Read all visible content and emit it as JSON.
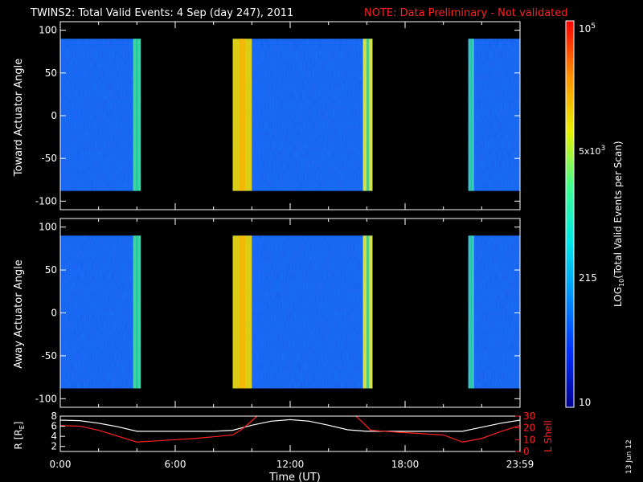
{
  "chart_data": [
    {
      "type": "heatmap",
      "title": "TWINS2: Total Valid Events:  4 Sep (day 247), 2011",
      "note": "NOTE: Data Preliminary - Not validated",
      "ylabel": "Toward Actuator Angle",
      "ylim": [
        -110,
        110
      ],
      "yticks": [
        "100",
        "50",
        "0",
        "-50",
        "-100"
      ],
      "ytick_values": [
        100,
        50,
        0,
        -50,
        -100
      ],
      "x_range_hours": [
        0,
        24
      ],
      "data_segments_hours": [
        [
          0,
          4.2
        ],
        [
          9.0,
          16.3
        ],
        [
          21.3,
          24
        ]
      ],
      "bright_bands_hours": [
        [
          3.8,
          4.2
        ],
        [
          9.0,
          10.0
        ],
        [
          15.8,
          16.3
        ],
        [
          21.3,
          21.6
        ]
      ]
    },
    {
      "type": "heatmap",
      "ylabel": "Away Actuator Angle",
      "ylim": [
        -110,
        110
      ],
      "yticks": [
        "100",
        "50",
        "0",
        "-50",
        "-100"
      ],
      "ytick_values": [
        100,
        50,
        0,
        -50,
        -100
      ],
      "x_range_hours": [
        0,
        24
      ],
      "data_segments_hours": [
        [
          0,
          4.2
        ],
        [
          9.0,
          16.3
        ],
        [
          21.3,
          24
        ]
      ],
      "bright_bands_hours": [
        [
          3.8,
          4.2
        ],
        [
          9.0,
          10.0
        ],
        [
          15.8,
          16.3
        ],
        [
          21.3,
          21.6
        ]
      ]
    },
    {
      "type": "line",
      "xlabel": "Time (UT)",
      "xticks": [
        "0:00",
        "6:00",
        "12:00",
        "18:00",
        "23:59"
      ],
      "xtick_values": [
        0,
        6,
        12,
        18,
        24
      ],
      "left_axis": {
        "label_main": "R [R",
        "label_sub": "E",
        "label_end": "]",
        "yticks": [
          "8",
          "6",
          "4",
          "2"
        ],
        "ytick_values": [
          8,
          6,
          4,
          2
        ],
        "ylim": [
          1,
          8
        ]
      },
      "right_axis": {
        "label": "L Shell",
        "yticks": [
          "30",
          "20",
          "10",
          "0"
        ],
        "ytick_values": [
          30,
          20,
          10,
          0
        ],
        "ylim": [
          0,
          30
        ],
        "color": "#ff2020"
      },
      "series": [
        {
          "axis": "left",
          "color": "#ffffff",
          "x": [
            0,
            1,
            2,
            3,
            4,
            6,
            8,
            9,
            10,
            11,
            12,
            13,
            14,
            15,
            16,
            17,
            18,
            19,
            20,
            21,
            22,
            23,
            24
          ],
          "y": [
            7.2,
            7.1,
            6.6,
            5.9,
            5.0,
            5.0,
            5.0,
            5.2,
            6.2,
            7.0,
            7.3,
            7.0,
            6.2,
            5.3,
            5.0,
            5.0,
            5.0,
            5.0,
            5.0,
            5.0,
            5.8,
            6.6,
            7.2
          ]
        },
        {
          "axis": "right",
          "color": "#ff2020",
          "x": [
            0,
            1,
            2,
            3,
            4,
            5,
            6,
            7,
            8,
            9,
            9.5,
            10,
            10.4,
            15.3,
            15.7,
            16.2,
            17,
            18,
            19,
            20,
            21,
            22,
            23,
            24
          ],
          "y": [
            22,
            21.5,
            18,
            13,
            8,
            9,
            10,
            11,
            12.5,
            14,
            19,
            26,
            32,
            32,
            26,
            18,
            17,
            16,
            15,
            14,
            8,
            11,
            17,
            22
          ]
        }
      ]
    }
  ],
  "colorbar": {
    "title_main": "LOG",
    "title_sub": "10",
    "title_rest": "(Total Valid Events per Scan)",
    "top_label": "10",
    "top_label_sup": "5",
    "mid_label": "5x10",
    "mid_label_sup": "3",
    "low_label": "215",
    "bottom_label": "10",
    "colors": [
      "#00008c",
      "#0030ff",
      "#0090ff",
      "#00e8e8",
      "#40ff90",
      "#e8f000",
      "#ff9000",
      "#ff0000"
    ]
  },
  "date_stamp": "13 Jun 12"
}
